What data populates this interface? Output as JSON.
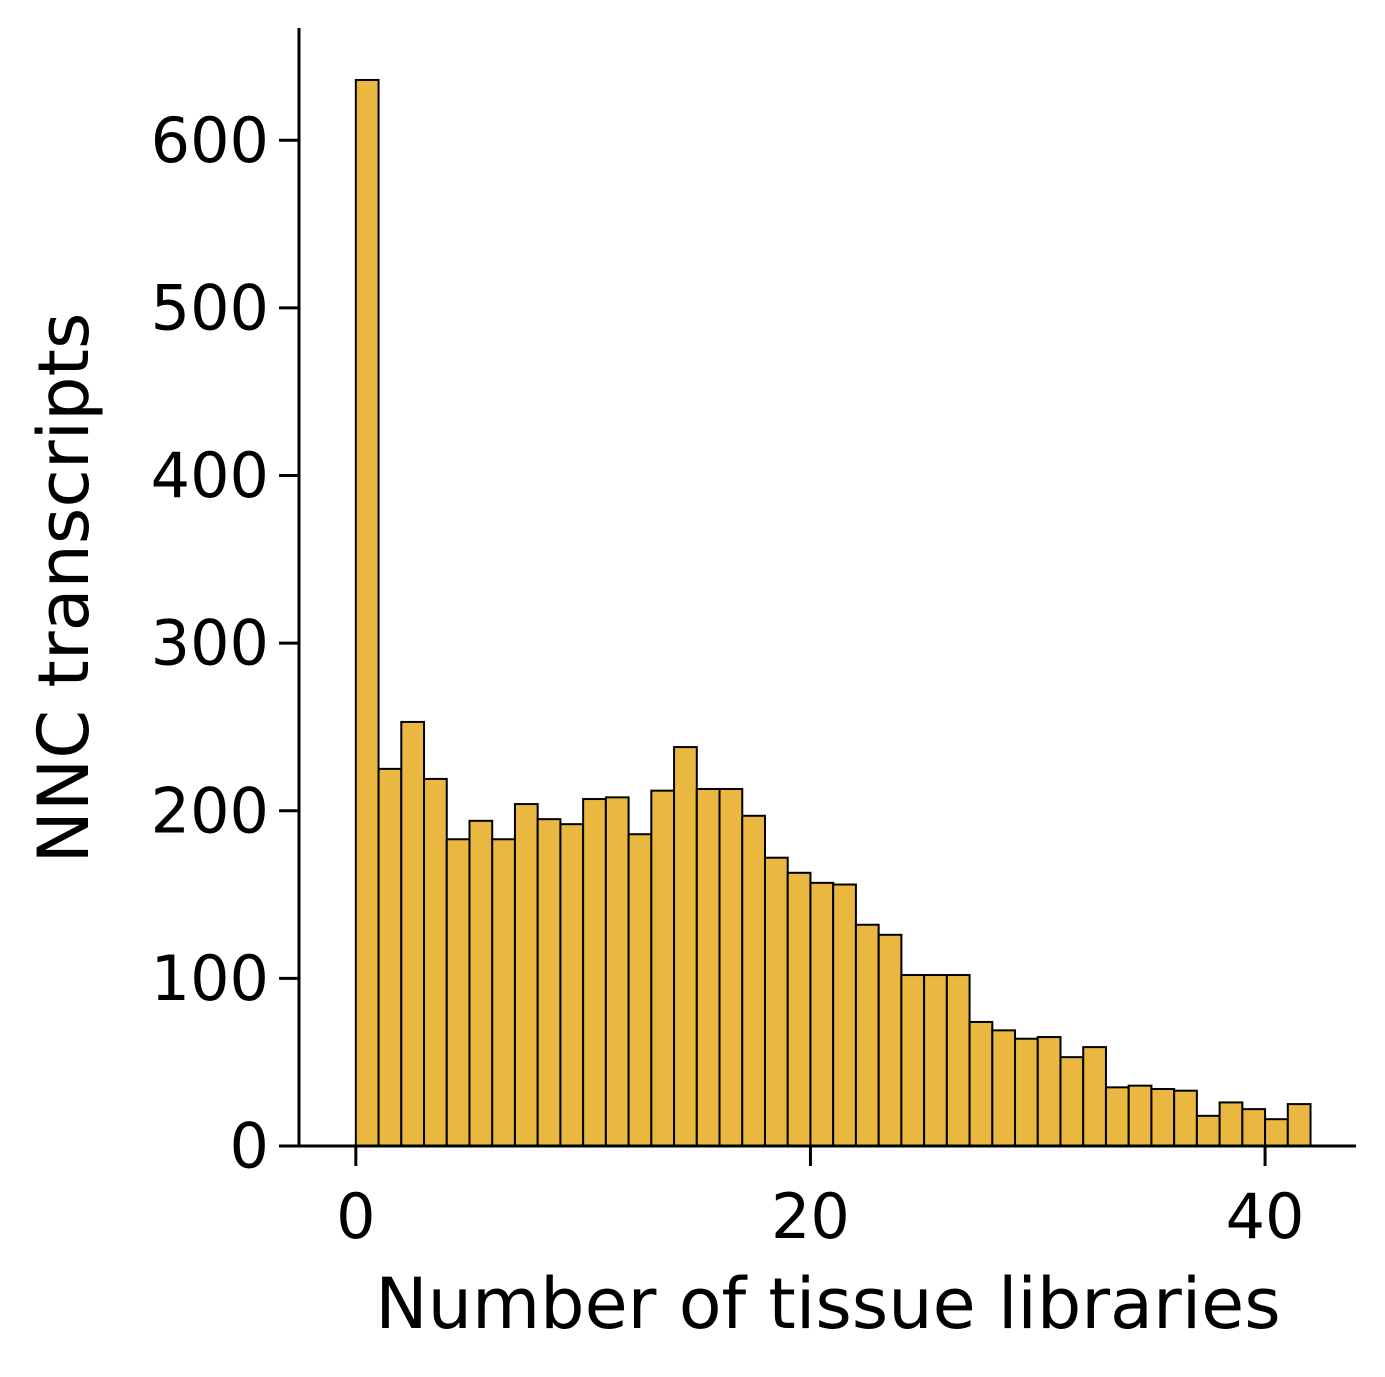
{
  "chart_data": {
    "type": "bar",
    "title": "",
    "xlabel": "Number of tissue libraries",
    "ylabel": "NNC transcripts",
    "bar_color": "#EAB740",
    "edge_color": "#000000",
    "bin_width": 1,
    "x_bin_starts": [
      0,
      1,
      2,
      3,
      4,
      5,
      6,
      7,
      8,
      9,
      10,
      11,
      12,
      13,
      14,
      15,
      16,
      17,
      18,
      19,
      20,
      21,
      22,
      23,
      24,
      25,
      26,
      27,
      28,
      29,
      30,
      31,
      32,
      33,
      34,
      35,
      36,
      37,
      38,
      39,
      40,
      41
    ],
    "values": [
      636,
      225,
      253,
      219,
      183,
      194,
      183,
      204,
      195,
      192,
      207,
      208,
      186,
      212,
      238,
      213,
      213,
      197,
      172,
      163,
      157,
      156,
      132,
      126,
      102,
      102,
      102,
      74,
      69,
      64,
      65,
      53,
      59,
      35,
      36,
      34,
      33,
      18,
      26,
      22,
      16,
      25
    ],
    "xlim": [
      -2.5,
      44
    ],
    "ylim": [
      0,
      667
    ],
    "x_ticks": [
      0,
      20,
      40
    ],
    "x_tick_labels": [
      "0",
      "20",
      "40"
    ],
    "y_ticks": [
      0,
      100,
      200,
      300,
      400,
      500,
      600
    ],
    "y_tick_labels": [
      "0",
      "100",
      "200",
      "300",
      "400",
      "500",
      "600"
    ],
    "grid": false,
    "legend": null
  }
}
